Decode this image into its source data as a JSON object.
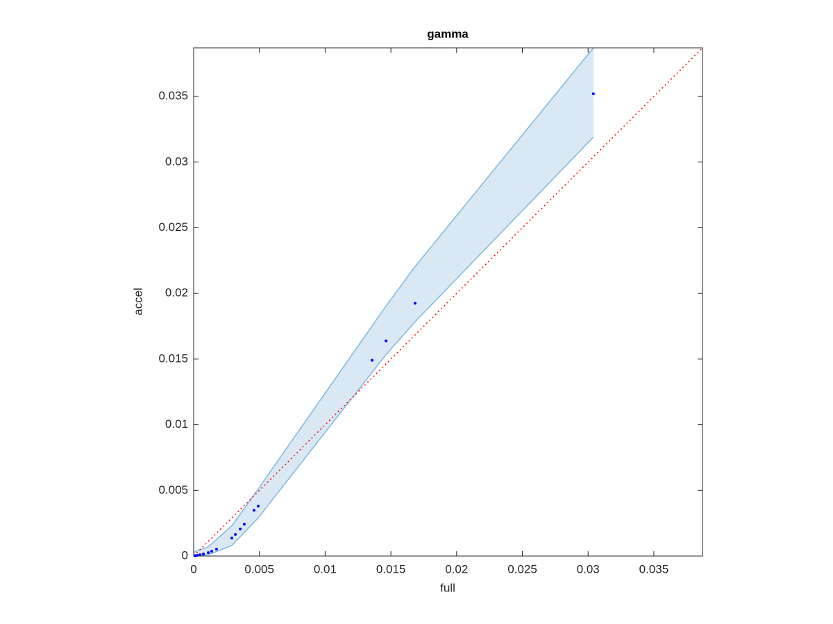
{
  "chart_data": {
    "type": "scatter",
    "title": "gamma",
    "x_label": "full",
    "y_label": "accel",
    "x": [
      0.0304,
      0.01684,
      0.01463,
      0.01357,
      0.00491,
      0.00459,
      0.00385,
      0.00354,
      0.00317,
      0.0029,
      0.00174,
      0.00137,
      0.00111,
      0.00074,
      0.00048,
      0.00026,
      0.0001
    ],
    "values": [
      0.0352,
      0.01925,
      0.01639,
      0.01491,
      0.00381,
      0.00349,
      0.00243,
      0.00206,
      0.00164,
      0.00137,
      0.00053,
      0.00037,
      0.00026,
      0.00016,
      0.0001,
      5e-05,
      2e-05
    ],
    "color": "#0000ff",
    "band": {
      "x": [
        0,
        0.0011,
        0.0029,
        0.0049,
        0.0146,
        0.0168,
        0.0304
      ],
      "upper": [
        0.0003,
        0.0007,
        0.0023,
        0.0051,
        0.019,
        0.022,
        0.0387
      ],
      "lower": [
        0,
        0.0001,
        0.0008,
        0.0029,
        0.0153,
        0.0178,
        0.0319
      ],
      "color": "#7fb8dc",
      "fill": "#dae8f4"
    },
    "identity_line": true,
    "identity_line_color": "#ff0000",
    "xlim": [
      0,
      0.0387
    ],
    "ylim": [
      0,
      0.0387
    ],
    "xticks": [
      0,
      0.005,
      0.01,
      0.015,
      0.02,
      0.025,
      0.03,
      0.035
    ],
    "yticks": [
      0,
      0.005,
      0.01,
      0.015,
      0.02,
      0.025,
      0.03,
      0.035
    ],
    "grid": false
  }
}
